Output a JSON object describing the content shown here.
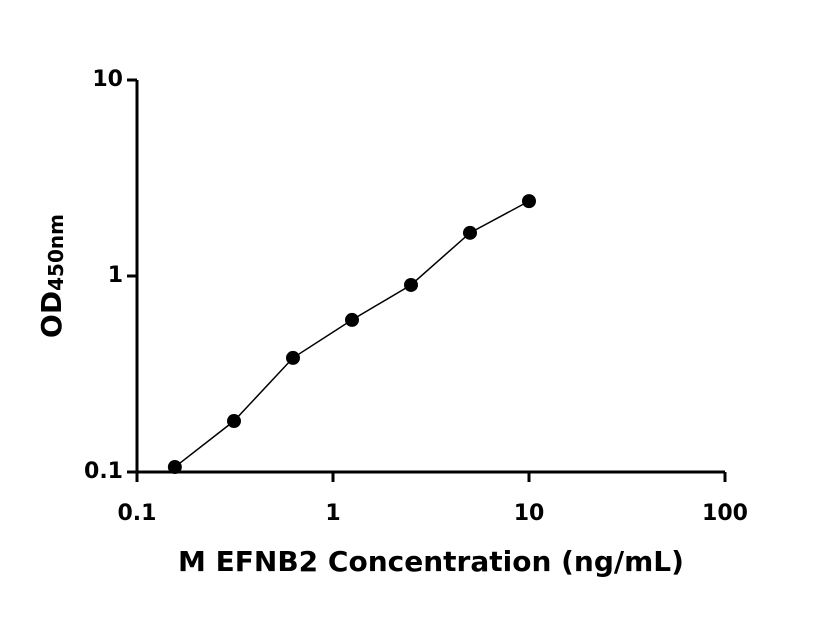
{
  "chart_data": {
    "type": "scatter",
    "x_label": "M EFNB2 Concentration (ng/mL)",
    "y_label": "OD",
    "y_label_sub": "450nm",
    "x": [
      0.156,
      0.3125,
      0.625,
      1.25,
      2.5,
      5,
      10
    ],
    "series": [
      {
        "color": "#000000",
        "values": [
          0.106,
          0.182,
          0.382,
          0.597,
          0.9,
          1.66,
          2.41
        ]
      }
    ],
    "xlim": [
      0.1,
      100
    ],
    "xticks": [
      0.1,
      1,
      10,
      100
    ],
    "ylim": [
      0.1,
      10
    ],
    "yticks": [
      0.1,
      1,
      10
    ],
    "log_x": true,
    "log_y": true,
    "line": true
  }
}
